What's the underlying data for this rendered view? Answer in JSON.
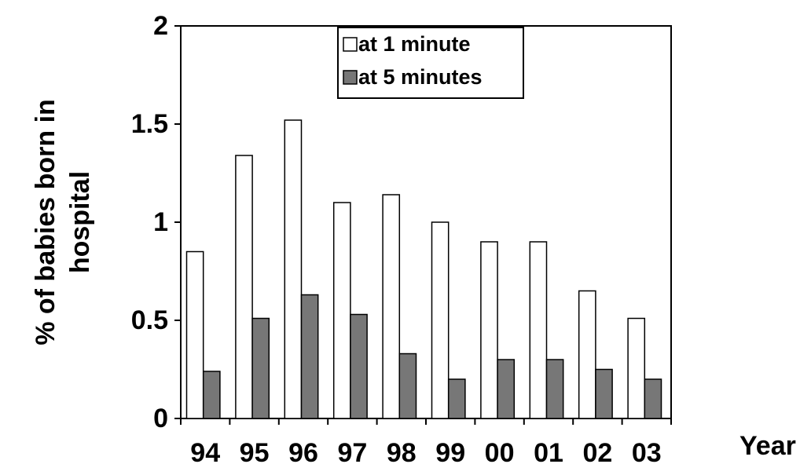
{
  "chart_data": {
    "type": "bar",
    "categories": [
      "94",
      "95",
      "96",
      "97",
      "98",
      "99",
      "00",
      "01",
      "02",
      "03"
    ],
    "series": [
      {
        "name": "at 1 minute",
        "color": "#ffffff",
        "values": [
          0.85,
          1.34,
          1.52,
          1.1,
          1.14,
          1.0,
          0.9,
          0.9,
          0.65,
          0.51
        ]
      },
      {
        "name": "at 5 minutes",
        "color": "#777777",
        "values": [
          0.24,
          0.51,
          0.63,
          0.53,
          0.33,
          0.2,
          0.3,
          0.3,
          0.25,
          0.2
        ]
      }
    ],
    "xlabel": "Year",
    "ylabel_lines": [
      "% of babies born in",
      "hospital"
    ],
    "ylim": [
      0,
      2
    ],
    "yticks": [
      {
        "value": 0,
        "label": "0"
      },
      {
        "value": 0.5,
        "label": "0.5"
      },
      {
        "value": 1,
        "label": "1"
      },
      {
        "value": 1.5,
        "label": "1.5"
      },
      {
        "value": 2,
        "label": "2"
      }
    ],
    "grid": false,
    "legend_position": "top-center"
  }
}
